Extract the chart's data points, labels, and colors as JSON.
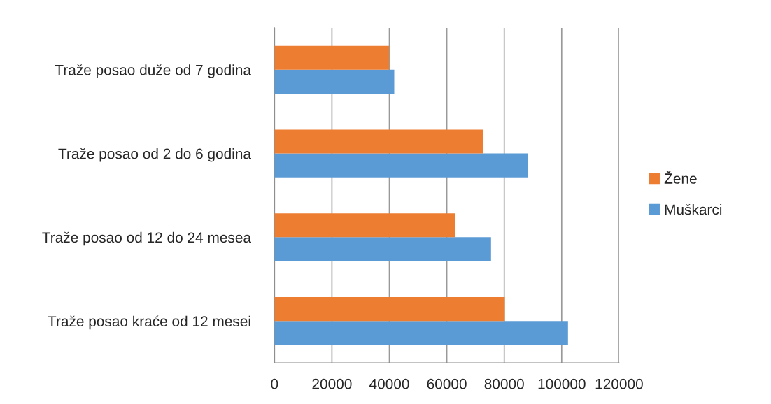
{
  "chart_data": {
    "type": "bar",
    "orientation": "horizontal",
    "categories": [
      "Traže posao duže od 7 godina",
      "Traže posao od 2 do 6 godina",
      "Traže posao od 12 do 24 mesea",
      "Traže posao kraće od 12 mesei"
    ],
    "series": [
      {
        "name": "Muškarci",
        "color": "#5b9bd5",
        "values": [
          41700,
          88300,
          75400,
          102200
        ]
      },
      {
        "name": "Žene",
        "color": "#ed7d31",
        "values": [
          39900,
          72600,
          62900,
          80200
        ]
      }
    ],
    "xlim": [
      0,
      120000
    ],
    "xticks": [
      0,
      20000,
      40000,
      60000,
      80000,
      100000,
      120000
    ],
    "grid": "x",
    "legend": "right"
  }
}
